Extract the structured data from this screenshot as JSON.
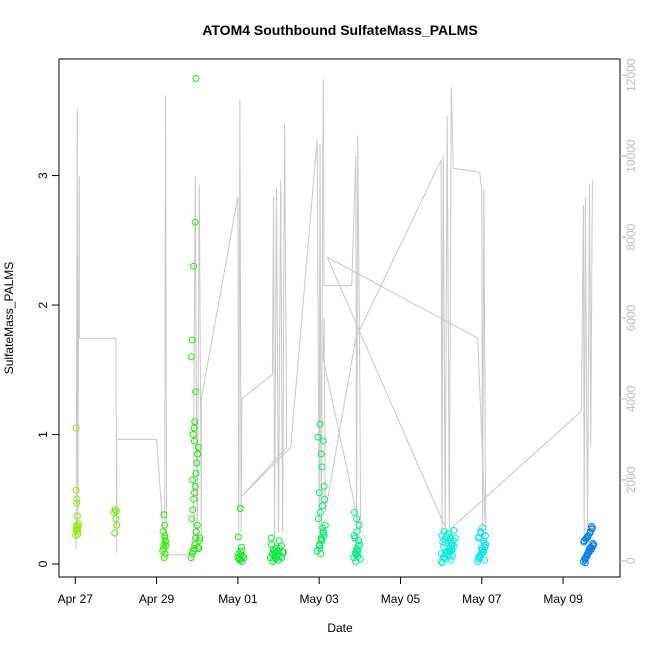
{
  "chart_data": {
    "type": "scatter",
    "title": "ATOM4 Southbound SulfateMass_PALMS",
    "xlabel": "Date",
    "ylabel": "SulfateMass_PALMS",
    "y2label": "",
    "xlim": [
      26.6,
      40.4
    ],
    "ylim": [
      -0.1,
      3.9
    ],
    "y2lim": [
      -400,
      12400
    ],
    "x_ticks": [
      {
        "value": 27,
        "label": "Apr 27"
      },
      {
        "value": 29,
        "label": "Apr 29"
      },
      {
        "value": 31,
        "label": "May 01"
      },
      {
        "value": 33,
        "label": "May 03"
      },
      {
        "value": 35,
        "label": "May 05"
      },
      {
        "value": 37,
        "label": "May 07"
      },
      {
        "value": 39,
        "label": "May 09"
      }
    ],
    "y_ticks": [
      0,
      1,
      2,
      3
    ],
    "y2_ticks": [
      0,
      2000,
      4000,
      6000,
      8000,
      10000,
      12000
    ],
    "grid": false,
    "legend": "none",
    "altitude_color": "#c8c8c8",
    "altitude_series": [
      [
        27.02,
        300
      ],
      [
        27.05,
        11200
      ],
      [
        27.06,
        700
      ],
      [
        27.08,
        5500
      ],
      [
        27.1,
        9500
      ],
      [
        27.1,
        5500
      ],
      [
        28.0,
        5500
      ],
      [
        28.02,
        200
      ],
      [
        28.02,
        3000
      ],
      [
        29.0,
        3000
      ],
      [
        29.2,
        200
      ],
      [
        29.22,
        11500
      ],
      [
        29.25,
        150
      ],
      [
        29.9,
        150
      ],
      [
        29.95,
        9500
      ],
      [
        30.0,
        400
      ],
      [
        30.05,
        9300
      ],
      [
        30.1,
        600
      ],
      [
        30.1,
        4000
      ],
      [
        31.0,
        9000
      ],
      [
        31.02,
        600
      ],
      [
        31.05,
        11400
      ],
      [
        31.08,
        700
      ],
      [
        31.1,
        4000
      ],
      [
        31.85,
        4600
      ],
      [
        31.88,
        9000
      ],
      [
        31.9,
        600
      ],
      [
        31.95,
        9200
      ],
      [
        32.0,
        700
      ],
      [
        32.05,
        9400
      ],
      [
        32.1,
        700
      ],
      [
        32.15,
        10800
      ],
      [
        32.2,
        2800
      ],
      [
        31.1,
        1600
      ],
      [
        32.3,
        2800
      ],
      [
        32.95,
        10400
      ],
      [
        33.0,
        600
      ],
      [
        33.02,
        10300
      ],
      [
        33.05,
        600
      ],
      [
        33.1,
        11900
      ],
      [
        33.12,
        6800
      ],
      [
        33.8,
        6800
      ],
      [
        33.9,
        10000
      ],
      [
        33.92,
        700
      ],
      [
        33.95,
        10500
      ],
      [
        34.0,
        4500
      ],
      [
        34.02,
        700
      ],
      [
        33.1,
        5000
      ],
      [
        33.12,
        6000
      ],
      [
        33.15,
        1200
      ],
      [
        33.9,
        5500
      ],
      [
        36.0,
        9900
      ],
      [
        36.02,
        700
      ],
      [
        36.05,
        10000
      ],
      [
        36.1,
        800
      ],
      [
        36.15,
        11000
      ],
      [
        36.2,
        800
      ],
      [
        36.25,
        11700
      ],
      [
        36.3,
        9700
      ],
      [
        36.95,
        9600
      ],
      [
        37.0,
        9100
      ],
      [
        37.02,
        700
      ],
      [
        37.05,
        9200
      ],
      [
        37.1,
        600
      ],
      [
        36.9,
        5500
      ],
      [
        33.2,
        7500
      ],
      [
        36.2,
        600
      ],
      [
        36.3,
        850
      ],
      [
        39.45,
        3700
      ],
      [
        39.5,
        8800
      ],
      [
        39.52,
        600
      ],
      [
        39.55,
        9000
      ],
      [
        39.6,
        700
      ],
      [
        39.65,
        9300
      ],
      [
        39.68,
        2800
      ],
      [
        39.72,
        9400
      ]
    ],
    "x": [
      27.01,
      27.02,
      27.03,
      27.04,
      27.05,
      27.06,
      27.02,
      27.04,
      27.03,
      27.05,
      27.07,
      27.08,
      27.02,
      27.06,
      27.04,
      27.95,
      27.98,
      28.0,
      28.02,
      27.97,
      28.01,
      29.15,
      29.18,
      29.2,
      29.22,
      29.17,
      29.19,
      29.21,
      29.16,
      29.23,
      29.2,
      29.18,
      29.22,
      29.2,
      29.85,
      29.88,
      29.9,
      29.92,
      29.94,
      29.96,
      29.98,
      30.0,
      30.02,
      30.05,
      29.87,
      29.89,
      29.91,
      29.93,
      29.95,
      29.97,
      29.99,
      30.01,
      30.03,
      29.9,
      29.92,
      29.94,
      29.96,
      29.86,
      29.88,
      29.91,
      29.95,
      29.97,
      30.04,
      30.06,
      29.93,
      29.89,
      31.0,
      31.02,
      31.05,
      31.08,
      31.1,
      31.12,
      31.04,
      31.07,
      31.15,
      31.01,
      31.06,
      31.09,
      31.8,
      31.85,
      31.9,
      31.95,
      32.0,
      32.05,
      32.1,
      31.83,
      31.88,
      31.93,
      31.98,
      32.03,
      32.08,
      31.82,
      31.87,
      31.92,
      31.97,
      32.02,
      32.07,
      32.12,
      31.86,
      31.91,
      31.96,
      32.95,
      33.0,
      33.05,
      33.1,
      33.15,
      33.02,
      33.07,
      33.12,
      32.98,
      33.03,
      33.08,
      33.13,
      33.0,
      33.05,
      33.1,
      32.97,
      33.02,
      33.07,
      33.12,
      33.04,
      33.09,
      33.01,
      33.06,
      33.11,
      33.85,
      33.9,
      33.95,
      34.0,
      33.88,
      33.93,
      33.98,
      33.87,
      33.92,
      33.97,
      33.9,
      33.95,
      33.86,
      33.91,
      33.96,
      33.89,
      33.94,
      34.01,
      33.92,
      36.0,
      36.05,
      36.1,
      36.15,
      36.2,
      36.25,
      36.3,
      36.35,
      36.02,
      36.07,
      36.12,
      36.17,
      36.22,
      36.27,
      36.32,
      36.04,
      36.09,
      36.14,
      36.19,
      36.24,
      36.29,
      36.01,
      36.06,
      36.11,
      36.16,
      36.21,
      36.26,
      36.31,
      36.03,
      36.08,
      36.13,
      36.18,
      36.23,
      36.28,
      36.9,
      36.95,
      37.0,
      37.05,
      37.1,
      36.92,
      36.97,
      37.02,
      37.07,
      36.94,
      36.99,
      37.04,
      37.09,
      36.91,
      36.96,
      37.01,
      37.06,
      36.93,
      36.98,
      37.03,
      37.08,
      39.5,
      39.55,
      39.6,
      39.65,
      39.7,
      39.75,
      39.52,
      39.57,
      39.62,
      39.67,
      39.72,
      39.54,
      39.59,
      39.64,
      39.69,
      39.74,
      39.51,
      39.56,
      39.61,
      39.66,
      39.71,
      39.53,
      39.58,
      39.63,
      39.68,
      39.73,
      39.55,
      39.6,
      39.65,
      39.7
    ],
    "y": [
      0.22,
      0.27,
      0.3,
      0.25,
      0.28,
      0.26,
      0.57,
      0.5,
      0.47,
      0.37,
      0.29,
      0.31,
      1.05,
      0.23,
      0.3,
      0.4,
      0.42,
      0.35,
      0.3,
      0.24,
      0.41,
      0.1,
      0.15,
      0.2,
      0.18,
      0.12,
      0.05,
      0.08,
      0.25,
      0.14,
      0.3,
      0.38,
      0.17,
      0.22,
      0.05,
      0.08,
      0.1,
      0.12,
      0.15,
      0.2,
      0.25,
      0.3,
      0.13,
      0.18,
      0.35,
      0.42,
      0.5,
      0.55,
      0.6,
      0.7,
      0.78,
      0.85,
      0.9,
      1.0,
      1.05,
      1.1,
      1.33,
      1.6,
      1.73,
      2.3,
      2.64,
      3.75,
      0.12,
      0.2,
      0.95,
      0.65,
      0.05,
      0.08,
      0.03,
      0.1,
      0.02,
      0.06,
      0.04,
      0.07,
      0.05,
      0.21,
      0.43,
      0.13,
      0.05,
      0.08,
      0.1,
      0.12,
      0.03,
      0.06,
      0.09,
      0.15,
      0.07,
      0.04,
      0.1,
      0.12,
      0.05,
      0.2,
      0.11,
      0.08,
      0.06,
      0.18,
      0.14,
      0.09,
      0.02,
      0.05,
      0.07,
      0.1,
      0.15,
      0.2,
      0.25,
      0.3,
      0.12,
      0.18,
      0.22,
      0.35,
      0.4,
      0.45,
      0.5,
      0.55,
      0.85,
      0.95,
      0.98,
      1.08,
      0.75,
      0.6,
      0.08,
      0.28,
      0.14,
      0.19,
      0.24,
      0.05,
      0.08,
      0.1,
      0.15,
      0.2,
      0.25,
      0.3,
      0.4,
      0.12,
      0.18,
      0.02,
      0.06,
      0.22,
      0.07,
      0.14,
      0.09,
      0.11,
      0.04,
      0.35,
      0.02,
      0.05,
      0.08,
      0.1,
      0.12,
      0.15,
      0.18,
      0.2,
      0.22,
      0.25,
      0.04,
      0.07,
      0.09,
      0.11,
      0.14,
      0.17,
      0.19,
      0.21,
      0.24,
      0.03,
      0.06,
      0.08,
      0.13,
      0.16,
      0.23,
      0.1,
      0.12,
      0.26,
      0.01,
      0.05,
      0.09,
      0.18,
      0.2,
      0.15,
      0.02,
      0.05,
      0.08,
      0.1,
      0.15,
      0.2,
      0.25,
      0.28,
      0.03,
      0.06,
      0.12,
      0.18,
      0.22,
      0.04,
      0.07,
      0.11,
      0.16,
      0.21,
      0.24,
      0.09,
      0.13,
      0.02,
      0.05,
      0.08,
      0.1,
      0.12,
      0.15,
      0.18,
      0.2,
      0.22,
      0.25,
      0.28,
      0.03,
      0.06,
      0.09,
      0.11,
      0.14,
      0.17,
      0.19,
      0.21,
      0.24,
      0.27,
      0.04,
      0.07,
      0.1,
      0.13,
      0.16,
      0.01,
      0.08,
      0.12,
      0.29
    ]
  }
}
